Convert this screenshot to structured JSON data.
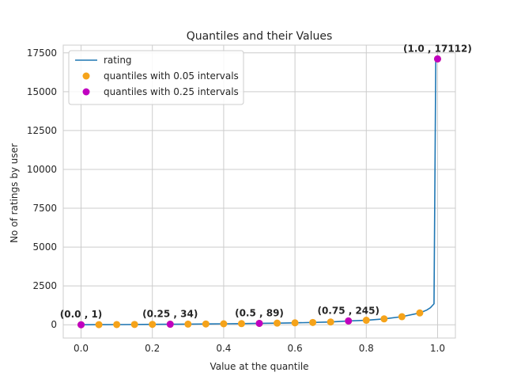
{
  "chart_data": {
    "type": "line",
    "title": "Quantiles and their Values",
    "xlabel": "Value at the quantile",
    "ylabel": "No of ratings by user",
    "xlim": [
      -0.05,
      1.05
    ],
    "ylim": [
      -855,
      18000
    ],
    "xticks": [
      0.0,
      0.2,
      0.4,
      0.6,
      0.8,
      1.0
    ],
    "xtick_labels": [
      "0.0",
      "0.2",
      "0.4",
      "0.6",
      "0.8",
      "1.0"
    ],
    "yticks": [
      0,
      2500,
      5000,
      7500,
      10000,
      12500,
      15000,
      17500
    ],
    "ytick_labels": [
      "0",
      "2500",
      "5000",
      "7500",
      "10000",
      "12500",
      "15000",
      "17500"
    ],
    "grid": true,
    "legend_position": "top-left",
    "series": [
      {
        "name": "rating",
        "kind": "line",
        "color": "#1f77b4",
        "x": [
          0.0,
          0.05,
          0.1,
          0.15,
          0.2,
          0.25,
          0.3,
          0.35,
          0.4,
          0.45,
          0.5,
          0.55,
          0.6,
          0.65,
          0.7,
          0.75,
          0.8,
          0.85,
          0.9,
          0.95,
          0.97,
          0.98,
          0.99,
          0.995,
          1.0
        ],
        "y": [
          1,
          7,
          12,
          18,
          26,
          34,
          42,
          52,
          62,
          74,
          89,
          105,
          124,
          147,
          180,
          245,
          290,
          380,
          520,
          760,
          950,
          1100,
          1350,
          17112,
          17112
        ]
      },
      {
        "name": "quantiles with 0.05 intervals",
        "kind": "scatter",
        "color": "#f5a31a",
        "x": [
          0.0,
          0.05,
          0.1,
          0.15,
          0.2,
          0.25,
          0.3,
          0.35,
          0.4,
          0.45,
          0.5,
          0.55,
          0.6,
          0.65,
          0.7,
          0.75,
          0.8,
          0.85,
          0.9,
          0.95,
          1.0
        ],
        "y": [
          1,
          7,
          12,
          18,
          26,
          34,
          42,
          52,
          62,
          74,
          89,
          105,
          124,
          147,
          180,
          245,
          290,
          380,
          520,
          760,
          17112
        ]
      },
      {
        "name": "quantiles with 0.25 intervals",
        "kind": "scatter",
        "color": "#c000c0",
        "x": [
          0.0,
          0.25,
          0.5,
          0.75,
          1.0
        ],
        "y": [
          1,
          34,
          89,
          245,
          17112
        ]
      }
    ],
    "annotations": [
      {
        "text": "(0.0 , 1)",
        "x": 0.0,
        "y": 1
      },
      {
        "text": "(0.25 , 34)",
        "x": 0.25,
        "y": 34
      },
      {
        "text": "(0.5 , 89)",
        "x": 0.5,
        "y": 89
      },
      {
        "text": "(0.75 , 245)",
        "x": 0.75,
        "y": 245
      },
      {
        "text": "(1.0 , 17112)",
        "x": 1.0,
        "y": 17112
      }
    ]
  }
}
